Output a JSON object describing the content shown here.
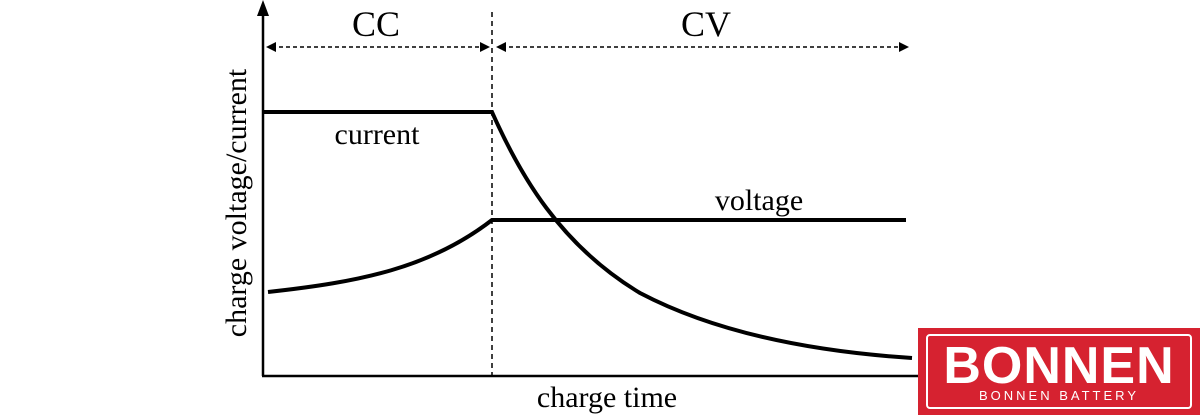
{
  "diagram": {
    "phase_left": "CC",
    "phase_right": "CV",
    "y_axis_label": "charge voltage/current",
    "x_axis_label": "charge time",
    "curve_current_label": "current",
    "curve_voltage_label": "voltage"
  },
  "logo": {
    "brand": "BONNEN",
    "tagline": "BONNEN BATTERY",
    "colors": {
      "background": "#d62230",
      "text": "#ffffff"
    }
  }
}
